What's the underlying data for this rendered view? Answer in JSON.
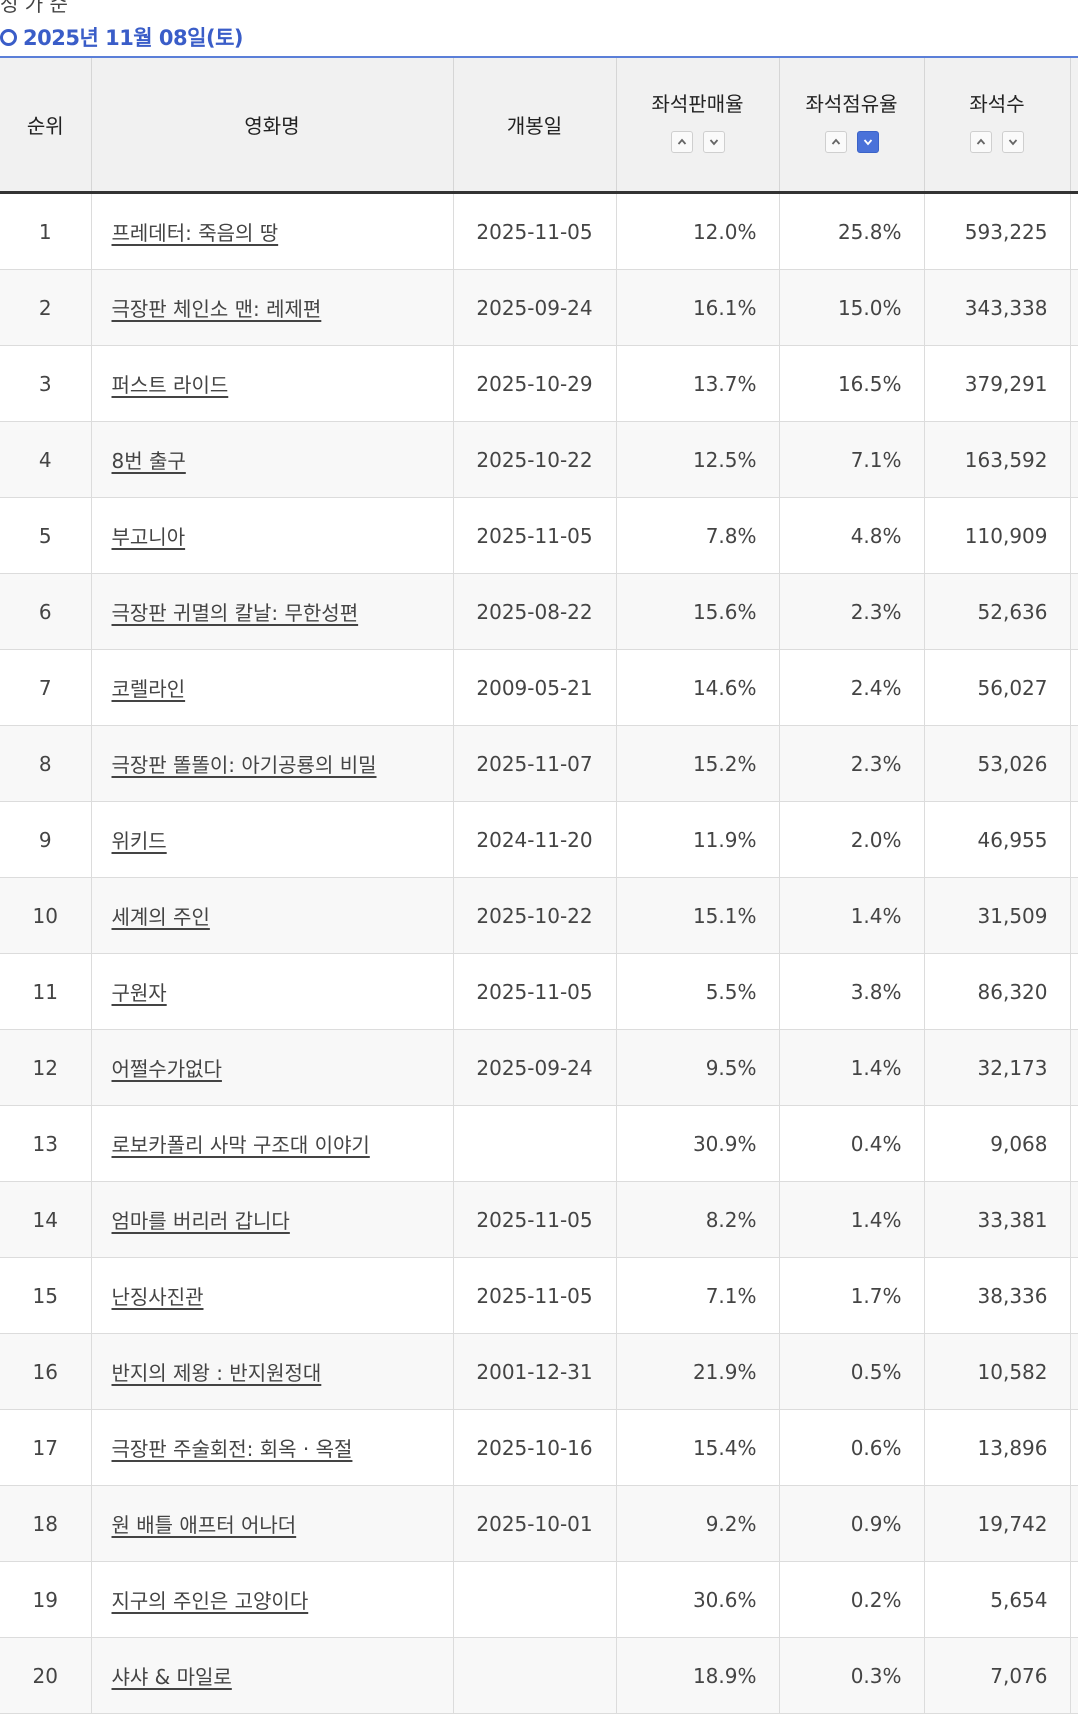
{
  "page": {
    "top_partial_text": "성 가 순",
    "date_heading": "2025년 11월 08일(토)"
  },
  "table": {
    "headers": {
      "rank": "순위",
      "title": "영화명",
      "release": "개봉일",
      "sales_rate": "좌석판매율",
      "occupancy": "좌석점유율",
      "seats": "좌석수"
    },
    "sort_active": "occupancy_desc",
    "rows": [
      {
        "rank": "1",
        "title": "프레데터: 죽음의 땅",
        "release": "2025-11-05",
        "sales_rate": "12.0%",
        "occupancy": "25.8%",
        "seats": "593,225"
      },
      {
        "rank": "2",
        "title": "극장판 체인소 맨: 레제편",
        "release": "2025-09-24",
        "sales_rate": "16.1%",
        "occupancy": "15.0%",
        "seats": "343,338"
      },
      {
        "rank": "3",
        "title": "퍼스트 라이드",
        "release": "2025-10-29",
        "sales_rate": "13.7%",
        "occupancy": "16.5%",
        "seats": "379,291"
      },
      {
        "rank": "4",
        "title": "8번 출구",
        "release": "2025-10-22",
        "sales_rate": "12.5%",
        "occupancy": "7.1%",
        "seats": "163,592"
      },
      {
        "rank": "5",
        "title": "부고니아",
        "release": "2025-11-05",
        "sales_rate": "7.8%",
        "occupancy": "4.8%",
        "seats": "110,909"
      },
      {
        "rank": "6",
        "title": "극장판 귀멸의 칼날: 무한성편",
        "release": "2025-08-22",
        "sales_rate": "15.6%",
        "occupancy": "2.3%",
        "seats": "52,636"
      },
      {
        "rank": "7",
        "title": "코렐라인",
        "release": "2009-05-21",
        "sales_rate": "14.6%",
        "occupancy": "2.4%",
        "seats": "56,027"
      },
      {
        "rank": "8",
        "title": "극장판 똘똘이: 아기공룡의 비밀",
        "release": "2025-11-07",
        "sales_rate": "15.2%",
        "occupancy": "2.3%",
        "seats": "53,026"
      },
      {
        "rank": "9",
        "title": "위키드",
        "release": "2024-11-20",
        "sales_rate": "11.9%",
        "occupancy": "2.0%",
        "seats": "46,955"
      },
      {
        "rank": "10",
        "title": "세계의 주인",
        "release": "2025-10-22",
        "sales_rate": "15.1%",
        "occupancy": "1.4%",
        "seats": "31,509"
      },
      {
        "rank": "11",
        "title": "구원자",
        "release": "2025-11-05",
        "sales_rate": "5.5%",
        "occupancy": "3.8%",
        "seats": "86,320"
      },
      {
        "rank": "12",
        "title": "어쩔수가없다",
        "release": "2025-09-24",
        "sales_rate": "9.5%",
        "occupancy": "1.4%",
        "seats": "32,173"
      },
      {
        "rank": "13",
        "title": "로보카폴리 사막 구조대 이야기",
        "release": "",
        "sales_rate": "30.9%",
        "occupancy": "0.4%",
        "seats": "9,068"
      },
      {
        "rank": "14",
        "title": "엄마를 버리러 갑니다",
        "release": "2025-11-05",
        "sales_rate": "8.2%",
        "occupancy": "1.4%",
        "seats": "33,381"
      },
      {
        "rank": "15",
        "title": "난징사진관",
        "release": "2025-11-05",
        "sales_rate": "7.1%",
        "occupancy": "1.7%",
        "seats": "38,336"
      },
      {
        "rank": "16",
        "title": "반지의 제왕 : 반지원정대",
        "release": "2001-12-31",
        "sales_rate": "21.9%",
        "occupancy": "0.5%",
        "seats": "10,582"
      },
      {
        "rank": "17",
        "title": "극장판 주술회전: 회옥 · 옥절",
        "release": "2025-10-16",
        "sales_rate": "15.4%",
        "occupancy": "0.6%",
        "seats": "13,896"
      },
      {
        "rank": "18",
        "title": "원 배틀 애프터 어나더",
        "release": "2025-10-01",
        "sales_rate": "9.2%",
        "occupancy": "0.9%",
        "seats": "19,742"
      },
      {
        "rank": "19",
        "title": "지구의 주인은 고양이다",
        "release": "",
        "sales_rate": "30.6%",
        "occupancy": "0.2%",
        "seats": "5,654"
      },
      {
        "rank": "20",
        "title": "샤샤 & 마일로",
        "release": "",
        "sales_rate": "18.9%",
        "occupancy": "0.3%",
        "seats": "7,076"
      }
    ]
  },
  "colors": {
    "accent": "#3a5dc8",
    "active_sort": "#4a72d9",
    "header_bg": "#f1f1f1",
    "row_alt_bg": "#f8f8f8"
  },
  "icons": {
    "heading_bullet": "circle-icon",
    "sort_up": "chevron-up-icon",
    "sort_down": "chevron-down-icon"
  }
}
